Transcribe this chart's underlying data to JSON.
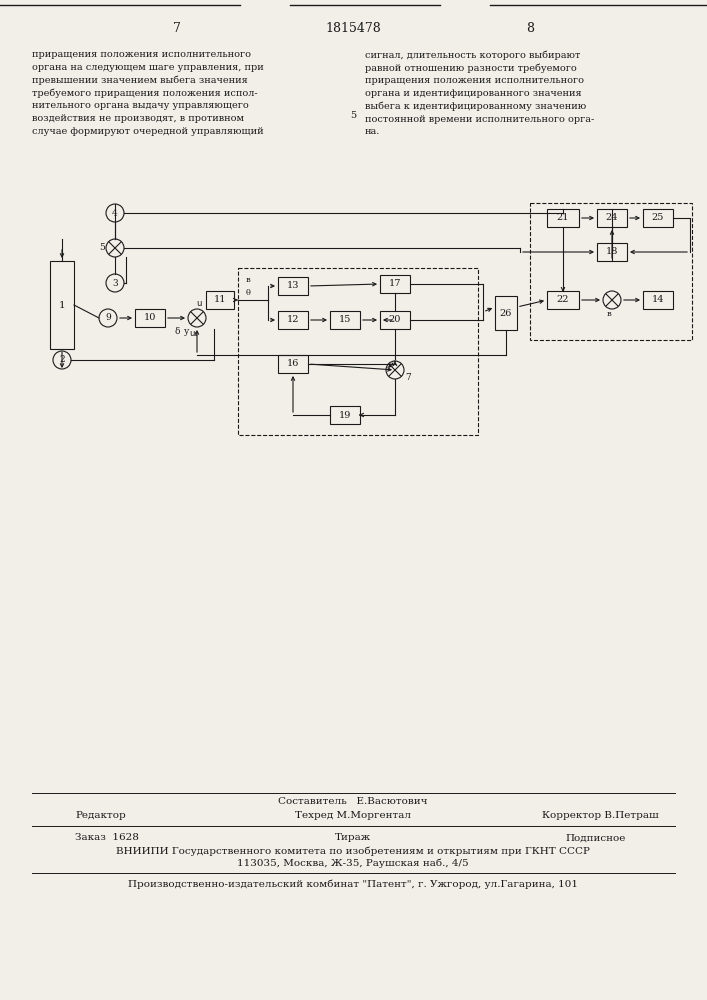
{
  "page_number_left": "7",
  "patent_number": "1815478",
  "page_number_right": "8",
  "text_left": "приращения положения исполнительного\nоргана на следующем шаге управления, при\nпревышении значением выбега значения\nтребуемого приращения положения испол-\nнительного органа выдачу управляющего\nвоздействия не производят, в противном\nслучае формируют очередной управляющий",
  "text_right": "сигнал, длительность которого выбирают\nравной отношению разности требуемого\nприращения положения исполнительного\nоргана и идентифицированного значения\nвыбега к идентифицированному значению\nпостоянной времени исполнительного орга-\nна.",
  "col_number": "5",
  "editor_label": "Редактор",
  "compiler_label": "Составитель",
  "compiler_name": "Е.Васютович",
  "techred_label": "Техред",
  "techred_name": "М.Моргентал",
  "corrector_label": "Корректор",
  "corrector_name": "В.Петраш",
  "order_label": "Заказ",
  "order_value": "1628",
  "tirazh_label": "Тираж",
  "podpisnoe_label": "Подписное",
  "vniiipi_line1": "ВНИИПИ Государственного комитета по изобретениям и открытиям при ГКНТ СССР",
  "vniiipi_line2": "113035, Москва, Ж-35, Раушская наб., 4/5",
  "factory_line": "Производственно-издательский комбинат \"Патент\", г. Ужгород, ул.Гагарина, 101",
  "bg_color": "#f2efe9",
  "text_color": "#1a1a1a",
  "line_color": "#1a1a1a"
}
